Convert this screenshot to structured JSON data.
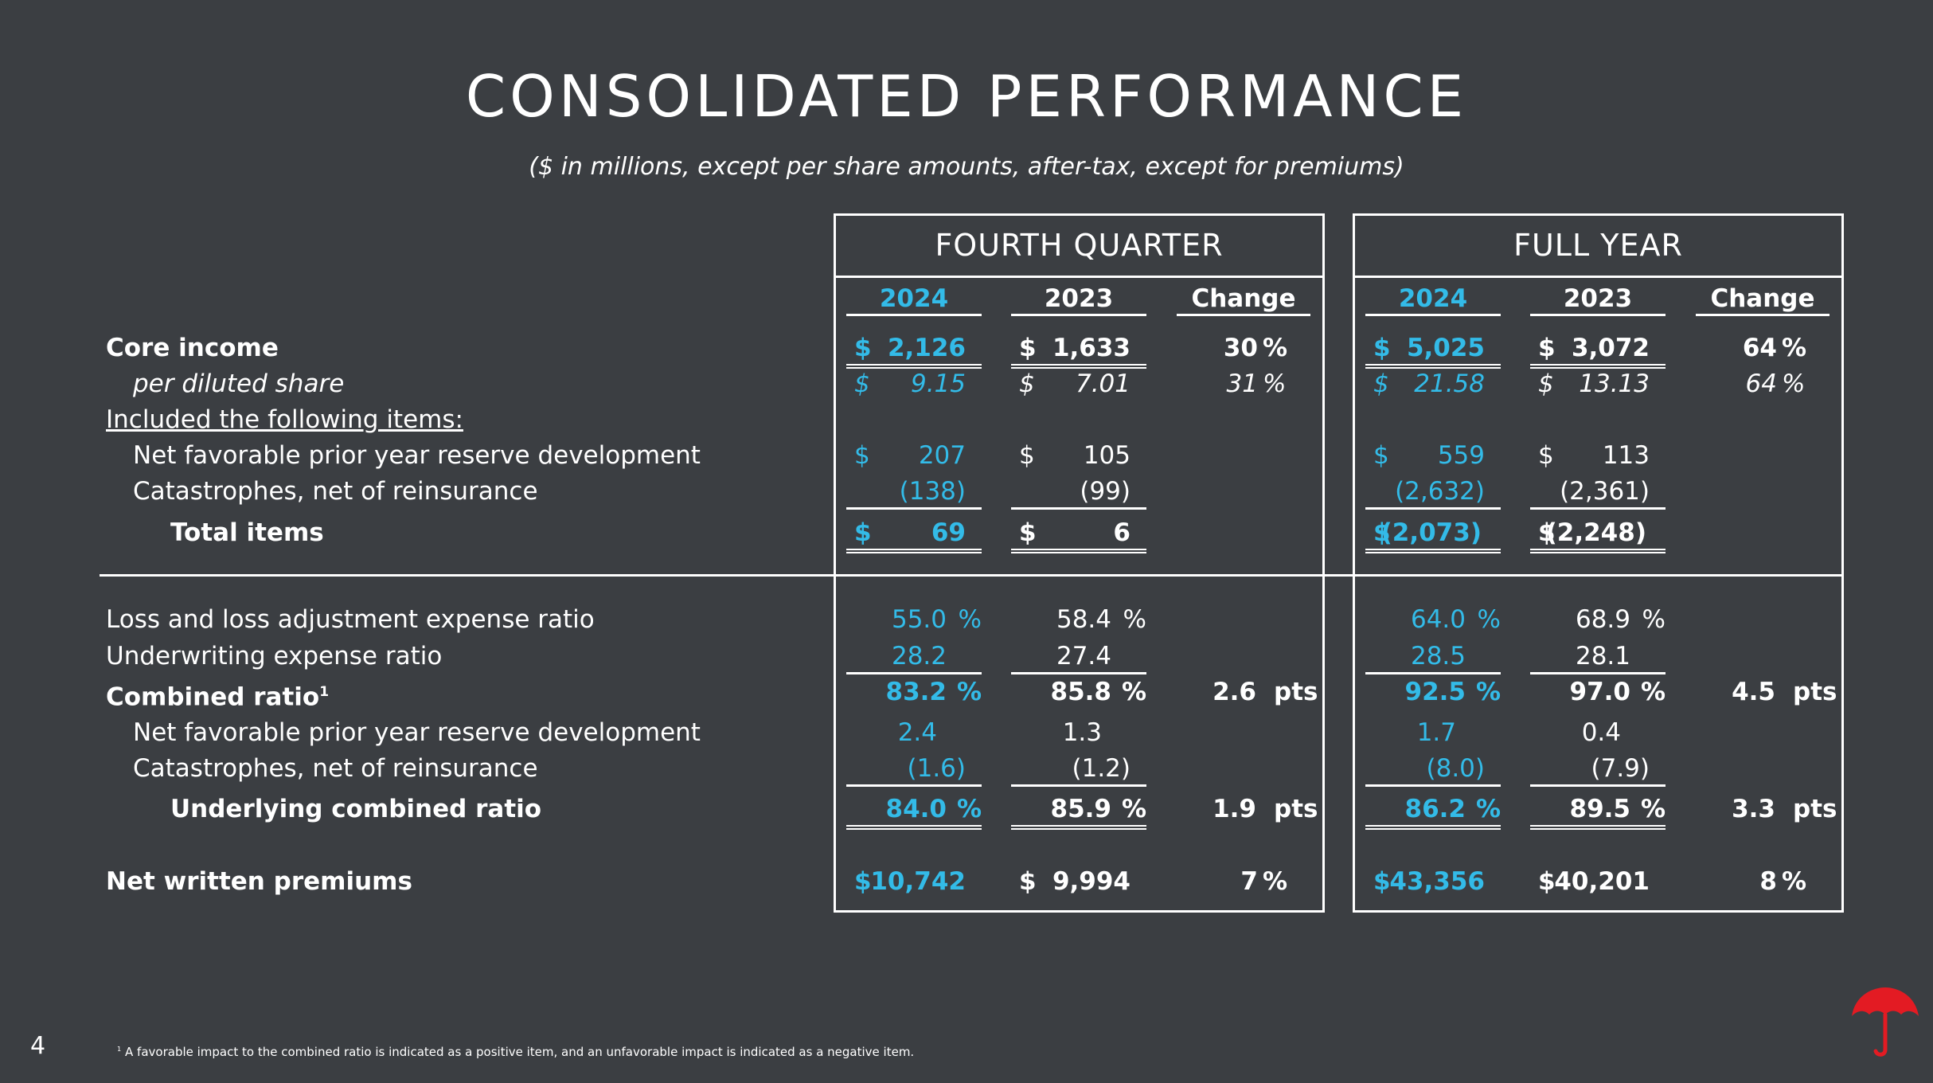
{
  "page": {
    "title": "CONSOLIDATED PERFORMANCE",
    "subtitle": "($ in millions, except per share amounts, after-tax, except for premiums)",
    "page_number": "4",
    "footnote_mark": "1",
    "footnote": "A favorable impact to the combined ratio is indicated as a positive item, and an unfavorable impact is indicated as a negative item."
  },
  "colors": {
    "background": "#3b3e42",
    "accent": "#33bbe8",
    "text": "#ffffff",
    "logo": "#e31b23"
  },
  "icons": {
    "logo": "umbrella-logo-icon"
  },
  "panels": {
    "quarter": {
      "title": "FOURTH QUARTER",
      "col_current": "2024",
      "col_prior": "2023",
      "col_change": "Change"
    },
    "year": {
      "title": "FULL YEAR",
      "col_current": "2024",
      "col_prior": "2023",
      "col_change": "Change"
    }
  },
  "labels": {
    "core_income": "Core income",
    "per_share": "per diluted share",
    "included": "Included the following items:",
    "pyd": "Net favorable prior year reserve development",
    "cat": "Catastrophes, net of reinsurance",
    "total_items": "Total items",
    "loss_ratio": "Loss and loss adjustment expense ratio",
    "uw_ratio": "Underwriting expense ratio",
    "combined": "Combined ratio",
    "combined_sup": "1",
    "pyd2": "Net favorable prior year reserve development",
    "cat2": "Catastrophes, net of reinsurance",
    "underlying": "Underlying combined ratio",
    "nwp": "Net written premiums"
  },
  "rows": {
    "core_income": {
      "q24": "2,126",
      "q23": "1,633",
      "qchg": "30",
      "qunit": "%",
      "y24": "5,025",
      "y23": "3,072",
      "ychg": "64",
      "yunit": "%"
    },
    "per_share": {
      "q24": "9.15",
      "q23": "7.01",
      "qchg": "31",
      "qunit": "%",
      "y24": "21.58",
      "y23": "13.13",
      "ychg": "64",
      "yunit": "%"
    },
    "pyd": {
      "q24": "207",
      "q23": "105",
      "y24": "559",
      "y23": "113"
    },
    "cat": {
      "q24": "(138)",
      "q23": "(99)",
      "y24": "(2,632)",
      "y23": "(2,361)"
    },
    "total_items": {
      "q24": "69",
      "q23": "6",
      "y24": "(2,073)",
      "y23": "(2,248)"
    },
    "loss_ratio": {
      "q24": "55.0",
      "q23": "58.4",
      "y24": "64.0",
      "y23": "68.9"
    },
    "uw_ratio": {
      "q24": "28.2",
      "q23": "27.4",
      "y24": "28.5",
      "y23": "28.1"
    },
    "combined": {
      "q24": "83.2",
      "q23": "85.8",
      "qchg": "2.6",
      "qunit": "pts",
      "y24": "92.5",
      "y23": "97.0",
      "ychg": "4.5",
      "yunit": "pts"
    },
    "pyd2": {
      "q24": "2.4",
      "q23": "1.3",
      "y24": "1.7",
      "y23": "0.4"
    },
    "cat2": {
      "q24": "(1.6)",
      "q23": "(1.2)",
      "y24": "(8.0)",
      "y23": "(7.9)"
    },
    "underlying": {
      "q24": "84.0",
      "q23": "85.9",
      "qchg": "1.9",
      "qunit": "pts",
      "y24": "86.2",
      "y23": "89.5",
      "ychg": "3.3",
      "yunit": "pts"
    },
    "nwp": {
      "q24": "10,742",
      "q23": "9,994",
      "qchg": "7",
      "qunit": "%",
      "y24": "43,356",
      "y23": "40,201",
      "ychg": "8",
      "yunit": "%"
    }
  },
  "symbols": {
    "dollar": "$",
    "percent": "%"
  }
}
